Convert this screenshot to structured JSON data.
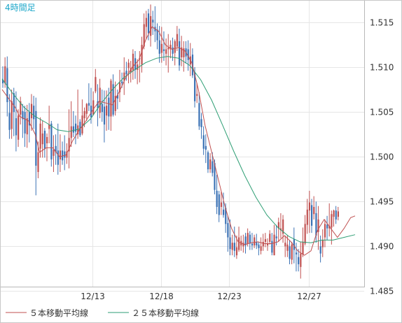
{
  "chart_data": {
    "type": "candlestick",
    "title": "4時間足",
    "x_ticks": [
      "12/13",
      "12/18",
      "12/23",
      "12/27"
    ],
    "y_ticks": [
      "1.515",
      "1.510",
      "1.505",
      "1.500",
      "1.495",
      "1.490",
      "1.485"
    ],
    "ylim": [
      1.4855,
      1.5175
    ],
    "grid": true,
    "legend": [
      {
        "name": "５本移動平均線",
        "color": "#c05050"
      },
      {
        "name": "２５本移動平均線",
        "color": "#2e9e74"
      }
    ],
    "candles": {
      "up_color": "#c05050",
      "down_color": "#3b72b5",
      "ohlc": [
        [
          1.5086,
          1.5101,
          1.5077,
          1.5082
        ],
        [
          1.5082,
          1.5111,
          1.5077,
          1.5101
        ],
        [
          1.5099,
          1.5112,
          1.5045,
          1.5061
        ],
        [
          1.5049,
          1.507,
          1.502,
          1.503
        ],
        [
          1.5031,
          1.5075,
          1.502,
          1.5062
        ],
        [
          1.5071,
          1.5077,
          1.5023,
          1.505
        ],
        [
          1.5043,
          1.5073,
          1.5006,
          1.5024
        ],
        [
          1.5019,
          1.5053,
          1.5011,
          1.5046
        ],
        [
          1.5047,
          1.5067,
          1.5036,
          1.5062
        ],
        [
          1.5051,
          1.5059,
          1.5021,
          1.5042
        ],
        [
          1.505,
          1.5057,
          1.5011,
          1.5026
        ],
        [
          1.5025,
          1.5058,
          1.501,
          1.5043
        ],
        [
          1.505,
          1.506,
          1.5016,
          1.5035
        ],
        [
          1.5043,
          1.507,
          1.5029,
          1.5059
        ],
        [
          1.5057,
          1.5068,
          1.5031,
          1.5042
        ],
        [
          1.5051,
          1.5066,
          1.4957,
          1.499
        ],
        [
          1.4983,
          1.5017,
          1.4976,
          1.5005
        ],
        [
          1.5009,
          1.5044,
          1.4999,
          1.5037
        ],
        [
          1.5014,
          1.504,
          1.4999,
          1.5026
        ],
        [
          1.5029,
          1.5032,
          1.4999,
          1.5009
        ],
        [
          1.5015,
          1.5026,
          1.4995,
          1.5022
        ],
        [
          1.5031,
          1.5057,
          1.5015,
          1.5036
        ],
        [
          1.5037,
          1.504,
          1.4989,
          1.4997
        ],
        [
          1.5001,
          1.5024,
          1.4983,
          1.5008
        ],
        [
          1.5012,
          1.5025,
          1.4991,
          1.5005
        ],
        [
          1.5007,
          1.5037,
          1.498,
          1.4991
        ],
        [
          1.4997,
          1.5025,
          1.4983,
          1.5007
        ],
        [
          1.5007,
          1.5017,
          1.4991,
          1.4996
        ],
        [
          1.5006,
          1.5024,
          1.4985,
          1.4999
        ],
        [
          1.4999,
          1.5015,
          1.4992,
          1.5006
        ],
        [
          1.5006,
          1.5053,
          1.4987,
          1.5021
        ],
        [
          1.5021,
          1.5062,
          1.5011,
          1.5034
        ],
        [
          1.5034,
          1.5051,
          1.5022,
          1.5027
        ],
        [
          1.5037,
          1.5046,
          1.5014,
          1.5028
        ],
        [
          1.5025,
          1.5075,
          1.502,
          1.5035
        ],
        [
          1.5039,
          1.5042,
          1.5022,
          1.5024
        ],
        [
          1.5026,
          1.5064,
          1.5024,
          1.5046
        ],
        [
          1.5043,
          1.5055,
          1.5033,
          1.5051
        ],
        [
          1.5048,
          1.506,
          1.504,
          1.5059
        ],
        [
          1.506,
          1.5082,
          1.5051,
          1.5057
        ],
        [
          1.5057,
          1.5077,
          1.5037,
          1.5044
        ],
        [
          1.5047,
          1.5073,
          1.5046,
          1.5063
        ],
        [
          1.5073,
          1.5098,
          1.5071,
          1.5089
        ],
        [
          1.5062,
          1.5081,
          1.5034,
          1.5054
        ],
        [
          1.5049,
          1.5087,
          1.5043,
          1.5077
        ],
        [
          1.5059,
          1.5075,
          1.5039,
          1.505
        ],
        [
          1.5056,
          1.5074,
          1.5016,
          1.5036
        ],
        [
          1.5046,
          1.5074,
          1.5029,
          1.5057
        ],
        [
          1.5066,
          1.5077,
          1.503,
          1.5045
        ],
        [
          1.5045,
          1.5087,
          1.5029,
          1.5085
        ],
        [
          1.5081,
          1.5092,
          1.5045,
          1.5047
        ],
        [
          1.5051,
          1.5084,
          1.5046,
          1.5068
        ],
        [
          1.5069,
          1.5075,
          1.5053,
          1.5065
        ],
        [
          1.5072,
          1.5097,
          1.5061,
          1.5083
        ],
        [
          1.5084,
          1.5094,
          1.5077,
          1.5082
        ],
        [
          1.5085,
          1.5111,
          1.5069,
          1.5094
        ],
        [
          1.5096,
          1.5106,
          1.5085,
          1.5092
        ],
        [
          1.5099,
          1.5109,
          1.5082,
          1.5105
        ],
        [
          1.5094,
          1.5107,
          1.5083,
          1.5099
        ],
        [
          1.5096,
          1.512,
          1.5086,
          1.5115
        ],
        [
          1.511,
          1.5118,
          1.5087,
          1.5097
        ],
        [
          1.5097,
          1.5109,
          1.5081,
          1.5103
        ],
        [
          1.5109,
          1.5118,
          1.5083,
          1.511
        ],
        [
          1.5103,
          1.5134,
          1.5094,
          1.5125
        ],
        [
          1.5123,
          1.516,
          1.512,
          1.5148
        ],
        [
          1.5145,
          1.5163,
          1.5131,
          1.5155
        ],
        [
          1.516,
          1.5165,
          1.513,
          1.5138
        ],
        [
          1.5135,
          1.517,
          1.5123,
          1.5157
        ],
        [
          1.5153,
          1.5163,
          1.5136,
          1.515
        ],
        [
          1.5145,
          1.5168,
          1.5128,
          1.514
        ],
        [
          1.5142,
          1.5149,
          1.512,
          1.513
        ],
        [
          1.513,
          1.5146,
          1.5105,
          1.5115
        ],
        [
          1.5116,
          1.5145,
          1.5105,
          1.5126
        ],
        [
          1.512,
          1.514,
          1.5107,
          1.5118
        ],
        [
          1.5115,
          1.5132,
          1.5102,
          1.512
        ],
        [
          1.512,
          1.5137,
          1.5094,
          1.5122
        ],
        [
          1.512,
          1.513,
          1.511,
          1.5125
        ],
        [
          1.5122,
          1.5133,
          1.5107,
          1.5115
        ],
        [
          1.5116,
          1.5131,
          1.5102,
          1.5129
        ],
        [
          1.5123,
          1.5146,
          1.5118,
          1.5137
        ],
        [
          1.5129,
          1.5143,
          1.5096,
          1.5102
        ],
        [
          1.5111,
          1.5135,
          1.5101,
          1.5122
        ],
        [
          1.5111,
          1.5129,
          1.5095,
          1.5121
        ],
        [
          1.5121,
          1.5129,
          1.5104,
          1.5112
        ],
        [
          1.512,
          1.513,
          1.5096,
          1.5108
        ],
        [
          1.5103,
          1.5127,
          1.509,
          1.5112
        ],
        [
          1.5114,
          1.5121,
          1.5088,
          1.5091
        ],
        [
          1.5094,
          1.51,
          1.5055,
          1.5062
        ],
        [
          1.5068,
          1.5082,
          1.506,
          1.507
        ],
        [
          1.506,
          1.5072,
          1.503,
          1.5034
        ],
        [
          1.5042,
          1.5049,
          1.502,
          1.5033
        ],
        [
          1.5024,
          1.5034,
          1.5002,
          1.5009
        ],
        [
          1.5012,
          1.5025,
          1.4993,
          1.5008
        ],
        [
          1.5005,
          1.5007,
          1.4982,
          1.4986
        ],
        [
          1.4986,
          1.5004,
          1.4982,
          1.4997
        ],
        [
          1.4995,
          1.5005,
          1.4978,
          1.4982
        ],
        [
          1.4993,
          1.4997,
          1.4958,
          1.4963
        ],
        [
          1.4962,
          1.498,
          1.4936,
          1.4944
        ],
        [
          1.4958,
          1.4962,
          1.4927,
          1.4935
        ],
        [
          1.4944,
          1.4961,
          1.4935,
          1.4949
        ],
        [
          1.4941,
          1.496,
          1.4932,
          1.4935
        ],
        [
          1.4943,
          1.4948,
          1.4915,
          1.4925
        ],
        [
          1.4926,
          1.4934,
          1.4894,
          1.491
        ],
        [
          1.491,
          1.493,
          1.489,
          1.4897
        ],
        [
          1.4896,
          1.4913,
          1.489,
          1.4904
        ],
        [
          1.4904,
          1.4922,
          1.4888,
          1.4895
        ],
        [
          1.489,
          1.4912,
          1.4886,
          1.4899
        ],
        [
          1.4896,
          1.4922,
          1.4894,
          1.491
        ],
        [
          1.4901,
          1.4912,
          1.4895,
          1.4906
        ],
        [
          1.49,
          1.4913,
          1.4893,
          1.4904
        ],
        [
          1.4911,
          1.4915,
          1.4892,
          1.4901
        ],
        [
          1.4903,
          1.492,
          1.49,
          1.4915
        ],
        [
          1.4913,
          1.4917,
          1.4896,
          1.4903
        ],
        [
          1.4903,
          1.4915,
          1.4896,
          1.4901
        ],
        [
          1.4901,
          1.4913,
          1.4898,
          1.491
        ],
        [
          1.4905,
          1.4914,
          1.4897,
          1.4901
        ],
        [
          1.4902,
          1.4905,
          1.489,
          1.4898
        ],
        [
          1.4895,
          1.491,
          1.4891,
          1.49
        ],
        [
          1.49,
          1.4914,
          1.4895,
          1.4905
        ],
        [
          1.4905,
          1.4915,
          1.4899,
          1.4908
        ],
        [
          1.4901,
          1.4909,
          1.4895,
          1.4903
        ],
        [
          1.4905,
          1.4918,
          1.4902,
          1.4914
        ],
        [
          1.4906,
          1.4915,
          1.489,
          1.4893
        ],
        [
          1.489,
          1.4924,
          1.489,
          1.4913
        ],
        [
          1.4911,
          1.4924,
          1.4901,
          1.4909
        ],
        [
          1.492,
          1.4932,
          1.4905,
          1.4927
        ],
        [
          1.4918,
          1.4937,
          1.4909,
          1.492
        ],
        [
          1.4914,
          1.4935,
          1.4904,
          1.493
        ],
        [
          1.49,
          1.4912,
          1.4888,
          1.4904
        ],
        [
          1.4895,
          1.4912,
          1.4888,
          1.4902
        ],
        [
          1.49,
          1.4907,
          1.488,
          1.4886
        ],
        [
          1.4885,
          1.4905,
          1.488,
          1.4902
        ],
        [
          1.4908,
          1.4921,
          1.4881,
          1.4896
        ],
        [
          1.4893,
          1.4904,
          1.4872,
          1.4891
        ],
        [
          1.4888,
          1.4897,
          1.4872,
          1.488
        ],
        [
          1.4877,
          1.4905,
          1.4864,
          1.4892
        ],
        [
          1.4891,
          1.4921,
          1.4888,
          1.4905
        ],
        [
          1.4903,
          1.4935,
          1.4901,
          1.4925
        ],
        [
          1.4924,
          1.4953,
          1.4914,
          1.4941
        ],
        [
          1.494,
          1.4962,
          1.4915,
          1.4949
        ],
        [
          1.4946,
          1.4953,
          1.4915,
          1.4923
        ],
        [
          1.4936,
          1.4956,
          1.493,
          1.4944
        ],
        [
          1.4937,
          1.495,
          1.4904,
          1.4912
        ],
        [
          1.4916,
          1.4945,
          1.4896,
          1.493
        ],
        [
          1.49,
          1.4912,
          1.4882,
          1.4892
        ],
        [
          1.4899,
          1.4919,
          1.4888,
          1.4907
        ],
        [
          1.491,
          1.493,
          1.4899,
          1.4925
        ],
        [
          1.4924,
          1.4934,
          1.4907,
          1.492
        ],
        [
          1.492,
          1.4948,
          1.4911,
          1.4923
        ],
        [
          1.4921,
          1.494,
          1.4902,
          1.4936
        ],
        [
          1.4933,
          1.4941,
          1.4922,
          1.494
        ],
        [
          1.494,
          1.4945,
          1.4925,
          1.493
        ],
        [
          1.4933,
          1.4944,
          1.4929,
          1.4939
        ]
      ]
    },
    "ma5": [
      [
        0,
        1.5075
      ],
      [
        6,
        1.5055
      ],
      [
        8,
        1.5045
      ],
      [
        12,
        1.504
      ],
      [
        15,
        1.5025
      ],
      [
        17,
        1.5005
      ],
      [
        20,
        1.501
      ],
      [
        23,
        1.501
      ],
      [
        26,
        1.5
      ],
      [
        29,
        1.5002
      ],
      [
        32,
        1.5018
      ],
      [
        35,
        1.503
      ],
      [
        38,
        1.504
      ],
      [
        41,
        1.5052
      ],
      [
        44,
        1.5062
      ],
      [
        47,
        1.506
      ],
      [
        50,
        1.5058
      ],
      [
        53,
        1.5072
      ],
      [
        56,
        1.5088
      ],
      [
        59,
        1.51
      ],
      [
        62,
        1.5108
      ],
      [
        65,
        1.513
      ],
      [
        68,
        1.5145
      ],
      [
        71,
        1.514
      ],
      [
        74,
        1.5125
      ],
      [
        77,
        1.512
      ],
      [
        80,
        1.5122
      ],
      [
        83,
        1.5118
      ],
      [
        86,
        1.5105
      ],
      [
        89,
        1.5075
      ],
      [
        92,
        1.5035
      ],
      [
        95,
        1.5005
      ],
      [
        98,
        1.4975
      ],
      [
        101,
        1.4945
      ],
      [
        104,
        1.492
      ],
      [
        107,
        1.4905
      ],
      [
        110,
        1.4902
      ],
      [
        113,
        1.4904
      ],
      [
        116,
        1.4905
      ],
      [
        119,
        1.4903
      ],
      [
        122,
        1.4903
      ],
      [
        125,
        1.4905
      ],
      [
        128,
        1.4912
      ],
      [
        131,
        1.4905
      ],
      [
        134,
        1.4895
      ],
      [
        137,
        1.489
      ],
      [
        140,
        1.4895
      ],
      [
        143,
        1.4918
      ],
      [
        146,
        1.493
      ],
      [
        149,
        1.492
      ],
      [
        152,
        1.491
      ],
      [
        155,
        1.492
      ],
      [
        158,
        1.4932
      ],
      [
        160,
        1.4934
      ]
    ],
    "ma25": [
      [
        0,
        1.5087
      ],
      [
        5,
        1.507
      ],
      [
        10,
        1.5055
      ],
      [
        15,
        1.5045
      ],
      [
        20,
        1.5038
      ],
      [
        25,
        1.503
      ],
      [
        30,
        1.5028
      ],
      [
        35,
        1.5031
      ],
      [
        40,
        1.5042
      ],
      [
        45,
        1.506
      ],
      [
        50,
        1.5075
      ],
      [
        55,
        1.5088
      ],
      [
        60,
        1.5097
      ],
      [
        65,
        1.5105
      ],
      [
        70,
        1.511
      ],
      [
        75,
        1.5112
      ],
      [
        80,
        1.511
      ],
      [
        85,
        1.5102
      ],
      [
        90,
        1.5086
      ],
      [
        95,
        1.5063
      ],
      [
        100,
        1.5035
      ],
      [
        105,
        1.5006
      ],
      [
        110,
        1.4979
      ],
      [
        115,
        1.4955
      ],
      [
        120,
        1.4935
      ],
      [
        125,
        1.4921
      ],
      [
        130,
        1.4911
      ],
      [
        135,
        1.4905
      ],
      [
        140,
        1.4904
      ],
      [
        145,
        1.4907
      ],
      [
        150,
        1.4907
      ],
      [
        155,
        1.491
      ],
      [
        160,
        1.4913
      ]
    ]
  }
}
